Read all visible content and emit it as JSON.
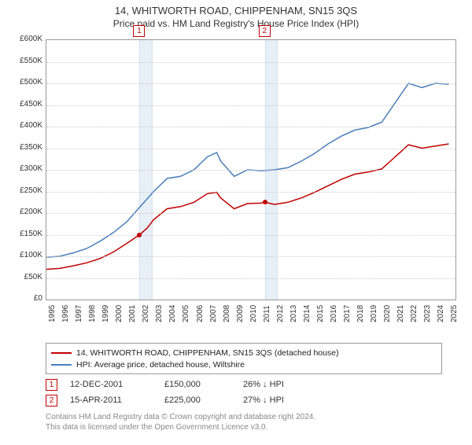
{
  "title": "14, WHITWORTH ROAD, CHIPPENHAM, SN15 3QS",
  "subtitle": "Price paid vs. HM Land Registry's House Price Index (HPI)",
  "chart": {
    "type": "line",
    "xlim": [
      1995,
      2025.5
    ],
    "ylim": [
      0,
      600
    ],
    "ytick_step": 50,
    "ytick_prefix": "£",
    "ytick_suffix": "K",
    "xtick_step": 1,
    "background_color": "#ffffff",
    "grid_color": "#cccccc",
    "border_color": "#999999",
    "line_width": 1.5,
    "series": [
      {
        "name": "subject_property",
        "label": "14, WHITWORTH ROAD, CHIPPENHAM, SN15 3QS (detached house)",
        "color": "#c00000",
        "x": [
          1995,
          1996,
          1997,
          1998,
          1999,
          2000,
          2001,
          2001.95,
          2002.5,
          2003,
          2004,
          2005,
          2006,
          2007,
          2007.7,
          2008,
          2009,
          2010,
          2011,
          2011.29,
          2012,
          2013,
          2014,
          2015,
          2016,
          2017,
          2018,
          2019,
          2020,
          2021,
          2022,
          2023,
          2024,
          2025
        ],
        "y": [
          70,
          72,
          78,
          85,
          95,
          110,
          130,
          150,
          165,
          185,
          210,
          215,
          225,
          245,
          248,
          235,
          210,
          222,
          223,
          225,
          220,
          225,
          235,
          248,
          263,
          278,
          290,
          295,
          302,
          330,
          358,
          350,
          355,
          360
        ]
      },
      {
        "name": "hpi",
        "label": "HPI: Average price, detached house, Wiltshire",
        "color": "#4a7ebb",
        "x": [
          1995,
          1996,
          1997,
          1998,
          1999,
          2000,
          2001,
          2002,
          2003,
          2004,
          2005,
          2006,
          2007,
          2007.7,
          2008,
          2009,
          2010,
          2011,
          2012,
          2013,
          2014,
          2015,
          2016,
          2017,
          2018,
          2019,
          2020,
          2021,
          2022,
          2023,
          2024,
          2025
        ],
        "y": [
          98,
          100,
          108,
          118,
          135,
          155,
          180,
          215,
          250,
          280,
          285,
          300,
          330,
          340,
          320,
          285,
          300,
          298,
          300,
          305,
          320,
          338,
          360,
          378,
          392,
          398,
          410,
          455,
          500,
          490,
          500,
          498
        ]
      }
    ],
    "sale_bands": [
      {
        "marker": "1",
        "start": 2001.95,
        "end": 2002.8,
        "color": "#dbe7f3"
      },
      {
        "marker": "2",
        "start": 2011.29,
        "end": 2012.15,
        "color": "#dbe7f3"
      }
    ],
    "sale_points": [
      {
        "x": 2001.95,
        "y": 150,
        "color": "#c00000"
      },
      {
        "x": 2011.29,
        "y": 225,
        "color": "#c00000"
      }
    ]
  },
  "legend": {
    "rows": [
      {
        "color": "#c00000",
        "label": "14, WHITWORTH ROAD, CHIPPENHAM, SN15 3QS (detached house)"
      },
      {
        "color": "#4a7ebb",
        "label": "HPI: Average price, detached house, Wiltshire"
      }
    ]
  },
  "sales": [
    {
      "marker": "1",
      "date": "12-DEC-2001",
      "price": "£150,000",
      "vs_hpi": "26% ↓ HPI"
    },
    {
      "marker": "2",
      "date": "15-APR-2011",
      "price": "£225,000",
      "vs_hpi": "27% ↓ HPI"
    }
  ],
  "footer": {
    "line1": "Contains HM Land Registry data © Crown copyright and database right 2024.",
    "line2": "This data is licensed under the Open Government Licence v3.0."
  },
  "text_color": "#333333",
  "muted_text_color": "#888888"
}
